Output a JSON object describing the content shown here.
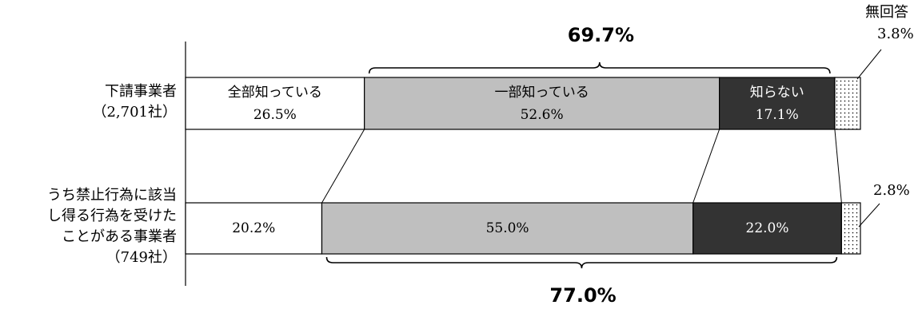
{
  "chart_data": {
    "type": "bar",
    "orientation": "horizontal",
    "stacked": true,
    "percent": true,
    "categories": [
      [
        "下請事業者",
        "（2,701社）"
      ],
      [
        "うち禁止行為に該当",
        "し得る行為を受けた",
        "ことがある事業者",
        "（749社）"
      ]
    ],
    "series": [
      {
        "name": "全部知っている",
        "values": [
          26.5,
          20.2
        ],
        "color": "#ffffff"
      },
      {
        "name": "一部知っている",
        "values": [
          52.6,
          55.0
        ],
        "color": "#bfbfbf"
      },
      {
        "name": "知らない",
        "values": [
          17.1,
          22.0
        ],
        "color": "#333333"
      },
      {
        "name": "無回答",
        "values": [
          3.8,
          2.8
        ],
        "color": "dotted"
      }
    ],
    "value_labels": [
      [
        "26.5%",
        "52.6%",
        "17.1%",
        "3.8%"
      ],
      [
        "20.2%",
        "55.0%",
        "22.0%",
        "2.8%"
      ]
    ],
    "annotations": {
      "top_brace": "69.7%",
      "bottom_brace": "77.0%"
    },
    "xlim": [
      0,
      100
    ]
  }
}
